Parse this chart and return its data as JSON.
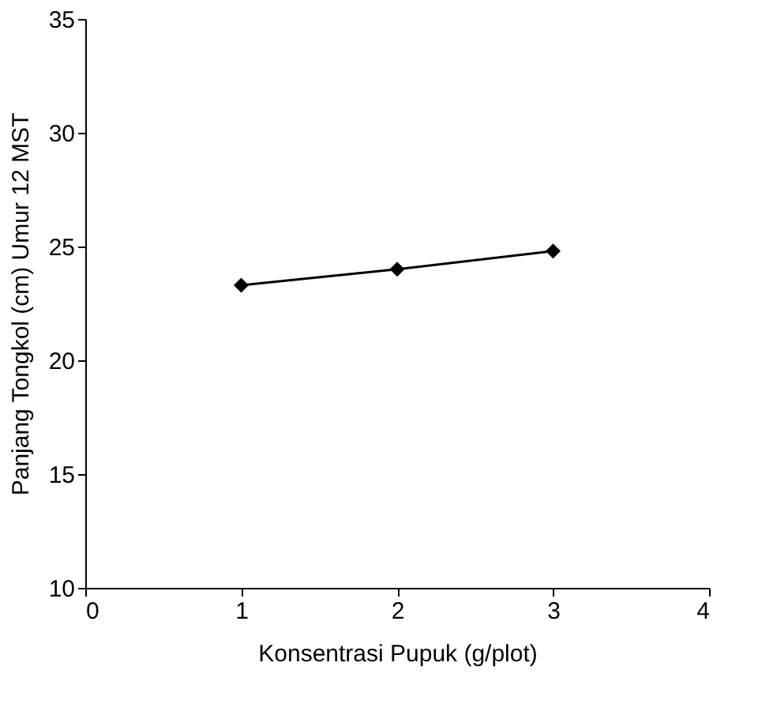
{
  "chart_data": {
    "type": "line",
    "xlabel": "Konsentrasi Pupuk (g/plot)",
    "ylabel": "Panjang Tongkol (cm) Umur 12 MST",
    "x": [
      1,
      2,
      3
    ],
    "series": [
      {
        "color": "#000000",
        "values": [
          23.3,
          24.0,
          24.8
        ]
      }
    ],
    "xlim": [
      0,
      4
    ],
    "xticks": [
      0,
      1,
      2,
      3,
      4
    ],
    "ylim": [
      10,
      35
    ],
    "yticks": [
      10,
      15,
      20,
      25,
      30,
      35
    ],
    "grid": false,
    "marker": "diamond",
    "line_style": "solid"
  }
}
